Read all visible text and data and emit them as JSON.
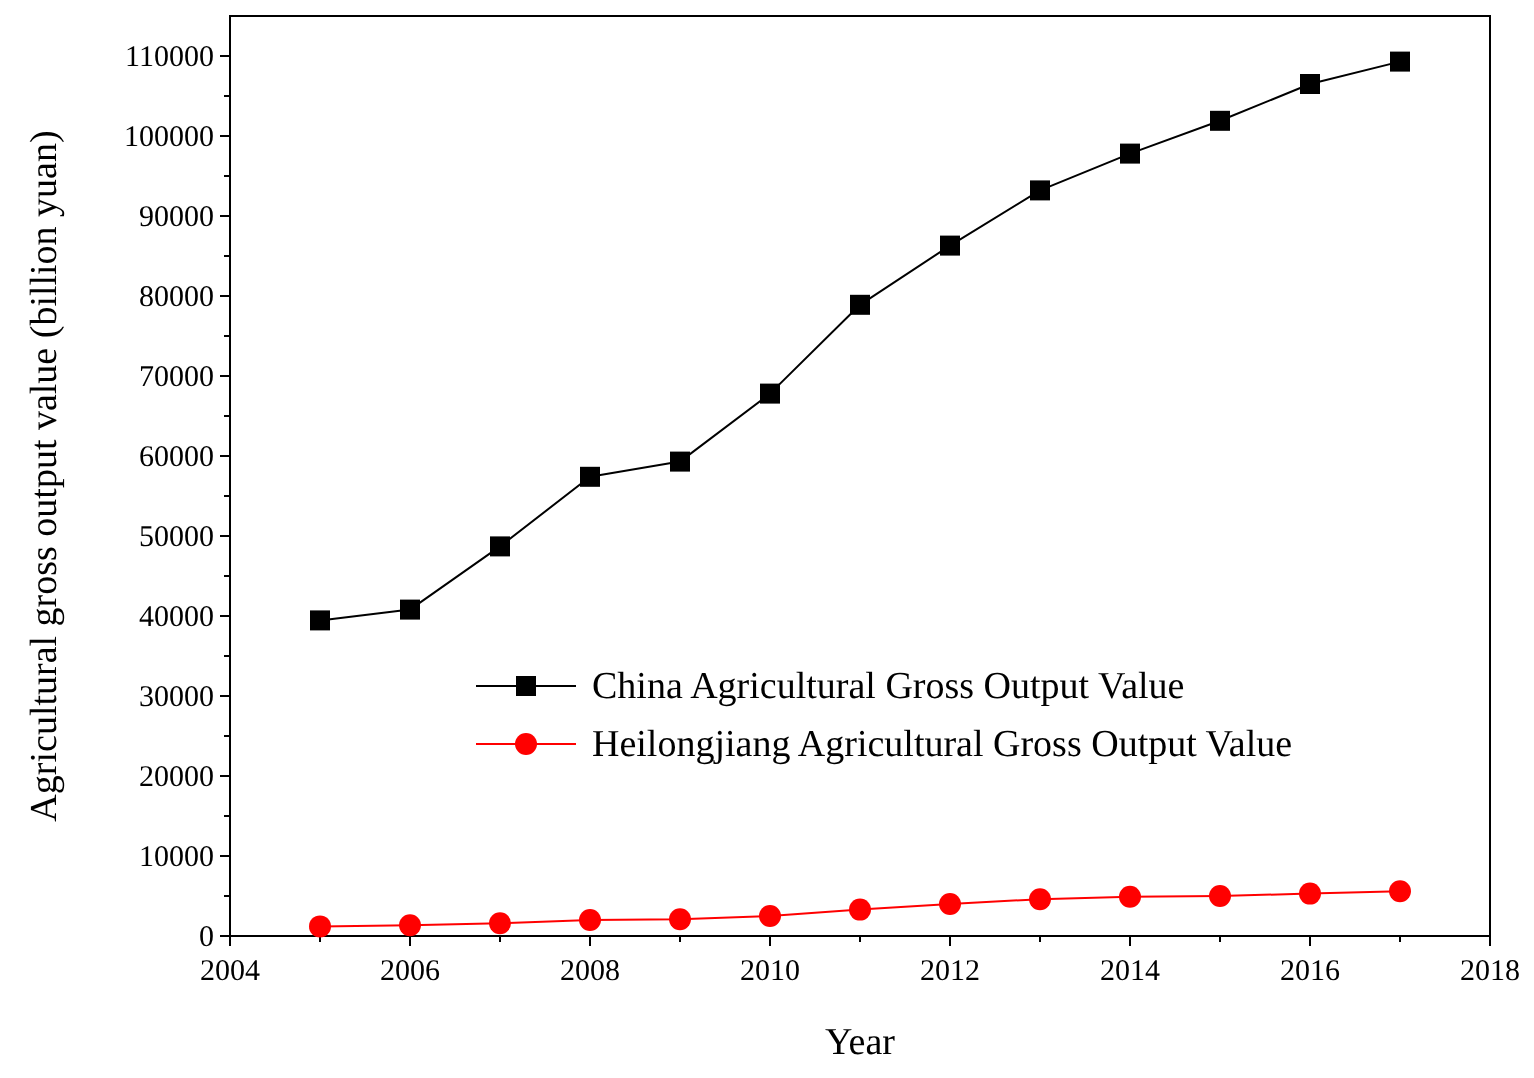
{
  "chart_data": {
    "type": "line",
    "xlabel": "Year",
    "ylabel": "Agricultural gross output value (billion yuan)",
    "x": [
      2005,
      2006,
      2007,
      2008,
      2009,
      2010,
      2011,
      2012,
      2013,
      2014,
      2015,
      2016,
      2017
    ],
    "series": [
      {
        "name": "China Agricultural Gross Output Value",
        "color": "#000000",
        "marker": "square",
        "values": [
          39450,
          40800,
          48700,
          57400,
          59300,
          67800,
          78900,
          86300,
          93200,
          97800,
          101900,
          106500,
          109300
        ]
      },
      {
        "name": "Heilongjiang Agricultural Gross Output Value",
        "color": "#ff0000",
        "marker": "circle",
        "values": [
          1200,
          1350,
          1600,
          2000,
          2100,
          2500,
          3300,
          4000,
          4600,
          4900,
          5000,
          5300,
          5600
        ]
      }
    ],
    "xlim": [
      2004,
      2018
    ],
    "xticks": [
      2004,
      2006,
      2008,
      2010,
      2012,
      2014,
      2016,
      2018
    ],
    "ylim": [
      0,
      115000
    ],
    "yticks": [
      0,
      10000,
      20000,
      30000,
      40000,
      50000,
      60000,
      70000,
      80000,
      90000,
      100000,
      110000
    ],
    "grid": false,
    "legend": "right",
    "line_style": "solid"
  }
}
